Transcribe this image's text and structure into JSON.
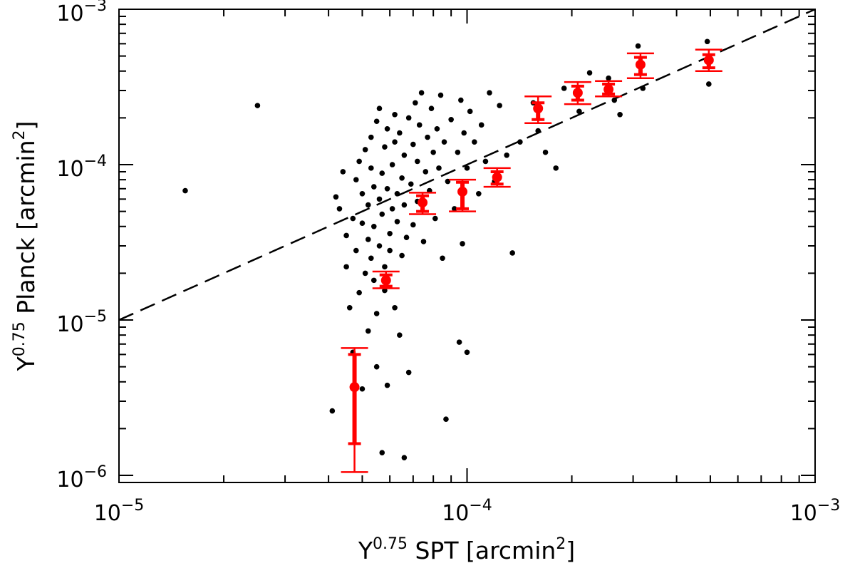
{
  "chart_data": {
    "type": "scatter",
    "title": "",
    "xscale": "log",
    "yscale": "log",
    "xlim": [
      1e-05,
      0.001
    ],
    "ylim": [
      9e-07,
      0.001
    ],
    "xlabel": {
      "base": "Y",
      "sup": "0.75",
      "main": " SPT ",
      "unit_open": "[arcmin",
      "unit_sup": "2",
      "unit_close": "]"
    },
    "ylabel": {
      "base": "Y",
      "sup": "0.75",
      "main": " Planck ",
      "unit_open": "[arcmin",
      "unit_sup": "2",
      "unit_close": "]"
    },
    "x_ticks": [
      {
        "value": 1e-05,
        "base": "10",
        "exp": "−5"
      },
      {
        "value": 0.0001,
        "base": "10",
        "exp": "−4"
      },
      {
        "value": 0.001,
        "base": "10",
        "exp": "−3"
      }
    ],
    "y_ticks": [
      {
        "value": 1e-06,
        "base": "10",
        "exp": "−6"
      },
      {
        "value": 1e-05,
        "base": "10",
        "exp": "−5"
      },
      {
        "value": 0.0001,
        "base": "10",
        "exp": "−4"
      },
      {
        "value": 0.001,
        "base": "10",
        "exp": "−3"
      }
    ],
    "fit_line": {
      "name": "one-to-one",
      "style": "dashed",
      "color": "#000000",
      "x": [
        1e-05,
        0.001
      ],
      "y": [
        1e-05,
        0.001
      ]
    },
    "clusters": {
      "name": "individual clusters",
      "color": "#000000",
      "points": [
        [
          1.55e-05,
          6.8e-05
        ],
        [
          2.5e-05,
          0.00024
        ],
        [
          4.1e-05,
          2.6e-06
        ],
        [
          4.2e-05,
          6.2e-05
        ],
        [
          4.3e-05,
          5.2e-05
        ],
        [
          4.4e-05,
          9e-05
        ],
        [
          4.5e-05,
          2.2e-05
        ],
        [
          4.5e-05,
          3.5e-05
        ],
        [
          4.6e-05,
          1.2e-05
        ],
        [
          4.7e-05,
          6.2e-06
        ],
        [
          4.7e-05,
          4.5e-05
        ],
        [
          4.8e-05,
          8e-05
        ],
        [
          4.8e-05,
          2.8e-05
        ],
        [
          4.9e-05,
          1.5e-05
        ],
        [
          4.9e-05,
          0.000105
        ],
        [
          5e-05,
          3.6e-06
        ],
        [
          5e-05,
          6.5e-05
        ],
        [
          5e-05,
          4.2e-05
        ],
        [
          5.1e-05,
          2e-05
        ],
        [
          5.1e-05,
          0.000125
        ],
        [
          5.2e-05,
          8.5e-06
        ],
        [
          5.2e-05,
          5.5e-05
        ],
        [
          5.2e-05,
          3.3e-05
        ],
        [
          5.3e-05,
          9.5e-05
        ],
        [
          5.3e-05,
          2.5e-05
        ],
        [
          5.3e-05,
          0.00015
        ],
        [
          5.4e-05,
          1.8e-05
        ],
        [
          5.4e-05,
          7.2e-05
        ],
        [
          5.4e-05,
          4e-05
        ],
        [
          5.5e-05,
          1.1e-05
        ],
        [
          5.5e-05,
          5e-06
        ],
        [
          5.5e-05,
          0.00019
        ],
        [
          5.6e-05,
          6e-05
        ],
        [
          5.6e-05,
          3e-05
        ],
        [
          5.6e-05,
          0.00023
        ],
        [
          5.7e-05,
          1.4e-06
        ],
        [
          5.7e-05,
          8.8e-05
        ],
        [
          5.7e-05,
          4.8e-05
        ],
        [
          5.8e-05,
          2.2e-05
        ],
        [
          5.8e-05,
          0.00013
        ],
        [
          5.8e-05,
          1.55e-05
        ],
        [
          5.9e-05,
          3.8e-06
        ],
        [
          5.9e-05,
          7e-05
        ],
        [
          5.9e-05,
          0.00017
        ],
        [
          6e-05,
          3.6e-05
        ],
        [
          6e-05,
          2.8e-05
        ],
        [
          6.1e-05,
          0.0001
        ],
        [
          6.1e-05,
          5.2e-05
        ],
        [
          6.2e-05,
          1.2e-05
        ],
        [
          6.2e-05,
          0.00021
        ],
        [
          6.2e-05,
          0.00014
        ],
        [
          6.3e-05,
          6.5e-05
        ],
        [
          6.3e-05,
          4.3e-05
        ],
        [
          6.4e-05,
          8e-06
        ],
        [
          6.4e-05,
          0.00016
        ],
        [
          6.5e-05,
          2.6e-05
        ],
        [
          6.5e-05,
          8.2e-05
        ],
        [
          6.6e-05,
          1.3e-06
        ],
        [
          6.6e-05,
          5.5e-05
        ],
        [
          6.6e-05,
          0.000115
        ],
        [
          6.7e-05,
          3.4e-05
        ],
        [
          6.8e-05,
          0.0002
        ],
        [
          6.8e-05,
          4.6e-06
        ],
        [
          6.9e-05,
          7.5e-05
        ],
        [
          7e-05,
          0.000135
        ],
        [
          7e-05,
          4.1e-05
        ],
        [
          7.1e-05,
          0.00025
        ],
        [
          7.2e-05,
          0.000105
        ],
        [
          7.2e-05,
          5.8e-05
        ],
        [
          7.3e-05,
          0.00018
        ],
        [
          7.4e-05,
          0.00029
        ],
        [
          7.5e-05,
          3.2e-05
        ],
        [
          7.6e-05,
          9e-05
        ],
        [
          7.7e-05,
          0.00015
        ],
        [
          7.8e-05,
          6.8e-05
        ],
        [
          7.9e-05,
          0.00023
        ],
        [
          8e-05,
          0.00012
        ],
        [
          8.1e-05,
          4.5e-05
        ],
        [
          8.2e-05,
          0.00017
        ],
        [
          8.3e-05,
          9.5e-05
        ],
        [
          8.4e-05,
          0.00028
        ],
        [
          8.5e-05,
          2.5e-05
        ],
        [
          8.6e-05,
          0.00014
        ],
        [
          8.7e-05,
          2.3e-06
        ],
        [
          8.8e-05,
          7.8e-05
        ],
        [
          9e-05,
          0.000195
        ],
        [
          9.2e-05,
          5.2e-05
        ],
        [
          9.4e-05,
          0.00012
        ],
        [
          9.5e-05,
          7.2e-06
        ],
        [
          9.6e-05,
          0.00026
        ],
        [
          9.7e-05,
          3.1e-05
        ],
        [
          9.8e-05,
          0.00016
        ],
        [
          0.0001,
          6.2e-06
        ],
        [
          0.0001,
          9.5e-05
        ],
        [
          0.000102,
          0.00022
        ],
        [
          0.000105,
          0.00014
        ],
        [
          0.000108,
          6.5e-05
        ],
        [
          0.00011,
          0.00018
        ],
        [
          0.000113,
          0.000105
        ],
        [
          0.000116,
          0.00029
        ],
        [
          0.00012,
          7.8e-05
        ],
        [
          0.000124,
          0.00024
        ],
        [
          0.00013,
          0.000115
        ],
        [
          0.000135,
          2.7e-05
        ],
        [
          0.000142,
          0.00014
        ],
        [
          0.000155,
          0.00025
        ],
        [
          0.00016,
          0.000165
        ],
        [
          0.000168,
          0.00012
        ],
        [
          0.00018,
          9.5e-05
        ],
        [
          0.00019,
          0.00031
        ],
        [
          0.00021,
          0.00022
        ],
        [
          0.000225,
          0.00039
        ],
        [
          0.000255,
          0.00036
        ],
        [
          0.000265,
          0.00026
        ],
        [
          0.000275,
          0.00021
        ],
        [
          0.00031,
          0.00058
        ],
        [
          0.00032,
          0.00031
        ],
        [
          0.00049,
          0.00062
        ],
        [
          0.000495,
          0.00033
        ]
      ]
    },
    "binned": {
      "name": "binned means",
      "color": "#ff0000",
      "points": [
        {
          "x": 4.75e-05,
          "y": 3.7e-06,
          "inner": [
            1.6e-06,
            6e-06
          ],
          "outer": [
            1.05e-06,
            6.6e-06
          ]
        },
        {
          "x": 5.85e-05,
          "y": 1.8e-05,
          "inner": [
            1.65e-05,
            1.95e-05
          ],
          "outer": [
            1.6e-05,
            2.05e-05
          ]
        },
        {
          "x": 7.45e-05,
          "y": 5.7e-05,
          "inner": [
            5e-05,
            6.3e-05
          ],
          "outer": [
            4.8e-05,
            6.6e-05
          ]
        },
        {
          "x": 9.7e-05,
          "y": 6.7e-05,
          "inner": [
            5.2e-05,
            7.7e-05
          ],
          "outer": [
            5e-05,
            8e-05
          ]
        },
        {
          "x": 0.000122,
          "y": 8.3e-05,
          "inner": [
            7.5e-05,
            9e-05
          ],
          "outer": [
            7.2e-05,
            9.5e-05
          ]
        },
        {
          "x": 0.00016,
          "y": 0.00023,
          "inner": [
            0.000195,
            0.00025
          ],
          "outer": [
            0.000185,
            0.000275
          ]
        },
        {
          "x": 0.000208,
          "y": 0.00029,
          "inner": [
            0.00026,
            0.00032
          ],
          "outer": [
            0.000245,
            0.00034
          ]
        },
        {
          "x": 0.000255,
          "y": 0.000305,
          "inner": [
            0.000285,
            0.00033
          ],
          "outer": [
            0.000275,
            0.000345
          ]
        },
        {
          "x": 0.000315,
          "y": 0.00044,
          "inner": [
            0.00038,
            0.00049
          ],
          "outer": [
            0.00036,
            0.00052
          ]
        },
        {
          "x": 0.000495,
          "y": 0.00047,
          "inner": [
            0.00042,
            0.00051
          ],
          "outer": [
            0.0004,
            0.00055
          ]
        }
      ]
    }
  }
}
